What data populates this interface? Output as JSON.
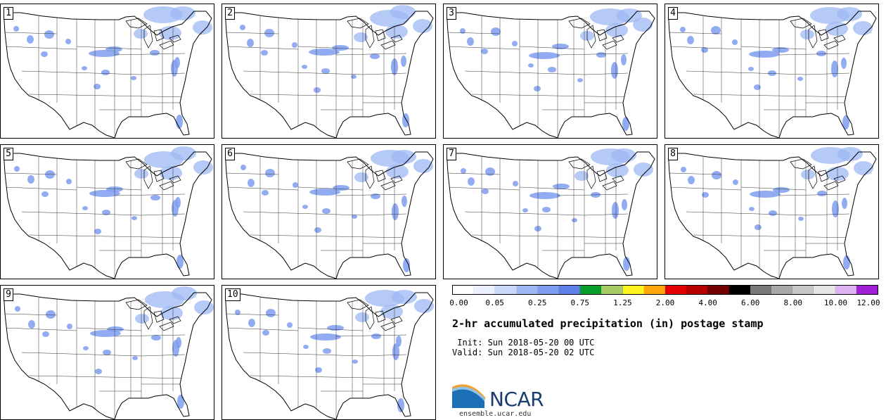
{
  "panels": [
    {
      "label": "1"
    },
    {
      "label": "2"
    },
    {
      "label": "3"
    },
    {
      "label": "4"
    },
    {
      "label": "5"
    },
    {
      "label": "6"
    },
    {
      "label": "7"
    },
    {
      "label": "8"
    },
    {
      "label": "9"
    },
    {
      "label": "10"
    }
  ],
  "colorbar": {
    "colors": [
      "#ffffff",
      "#eaf0fd",
      "#c9d7f8",
      "#9eb8f4",
      "#7e9df0",
      "#5f7fe9",
      "#089c2a",
      "#a7cc67",
      "#fff31f",
      "#ffa60a",
      "#e40000",
      "#b80000",
      "#730000",
      "#000000",
      "#787878",
      "#a8a8a8",
      "#c8c8c8",
      "#e6e6e6",
      "#dcb3f0",
      "#a21fd8"
    ],
    "labels": [
      "0.00",
      "0.05",
      "0.25",
      "0.75",
      "1.25",
      "2.00",
      "4.00",
      "6.00",
      "8.00",
      "10.00",
      "12.00"
    ]
  },
  "title": "2-hr accumulated precipitation (in) postage stamp",
  "init": " Init: Sun 2018-05-20 00 UTC",
  "valid": "Valid: Sun 2018-05-20 02 UTC",
  "logo": {
    "text": "NCAR",
    "url": "ensemble.ucar.edu",
    "colors": {
      "blue": "#1a6fb5",
      "navy": "#1a3d6e"
    }
  }
}
